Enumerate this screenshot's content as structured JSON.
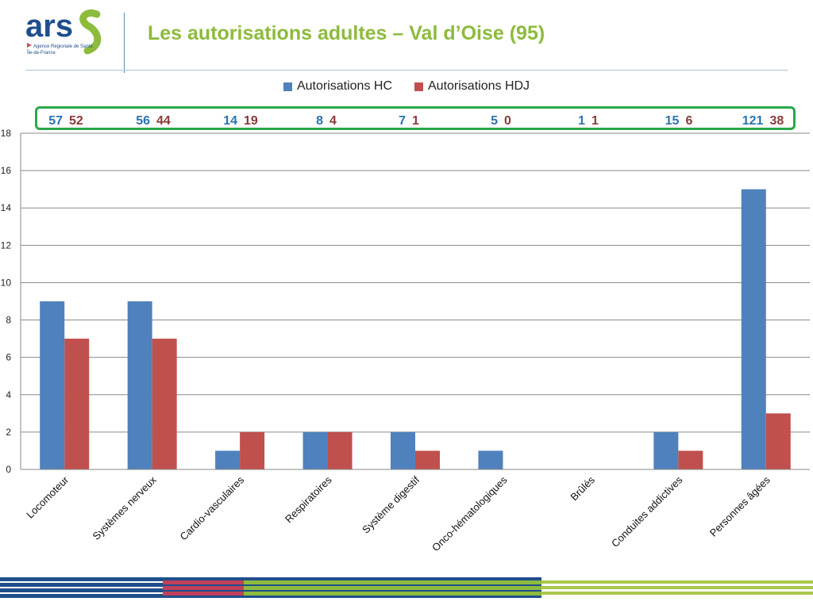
{
  "logo": {
    "text": "ars",
    "subtitle_line1": "Agence Régionale de Santé",
    "subtitle_line2": "Île-de-France"
  },
  "page": {
    "title": "Les autorisations adultes – Val d’Oise (95)"
  },
  "colors": {
    "hc": "#4f81bd",
    "hdj": "#c0504d",
    "title": "#8dbb3c",
    "box": "#2aa84a",
    "hc_text": "#2a72b0",
    "hdj_text": "#8a3a3a"
  },
  "legend": [
    {
      "label": "Autorisations HC",
      "color": "#4f81bd"
    },
    {
      "label": "Autorisations HDJ",
      "color": "#c0504d"
    }
  ],
  "counts": [
    {
      "hc": "57",
      "hdj": "52"
    },
    {
      "hc": "56",
      "hdj": "44"
    },
    {
      "hc": "14",
      "hdj": "19"
    },
    {
      "hc": "8",
      "hdj": "4"
    },
    {
      "hc": "7",
      "hdj": "1"
    },
    {
      "hc": "5",
      "hdj": "0"
    },
    {
      "hc": "1",
      "hdj": "1"
    },
    {
      "hc": "15",
      "hdj": "6"
    },
    {
      "hc": "121",
      "hdj": "38"
    }
  ],
  "chart_data": {
    "type": "bar",
    "categories": [
      "Locomoteur",
      "Systèmes nerveux",
      "Cardio-vasculaires",
      "Respiratoires",
      "Système digestif",
      "Onco-hématologiques",
      "Brûlés",
      "Conduites addictives",
      "Personnes âgées"
    ],
    "series": [
      {
        "name": "Autorisations HC",
        "values": [
          9,
          9,
          1,
          2,
          2,
          1,
          0,
          2,
          15
        ]
      },
      {
        "name": "Autorisations HDJ",
        "values": [
          7,
          7,
          2,
          2,
          1,
          0,
          0,
          1,
          3
        ]
      }
    ],
    "ylim": [
      0,
      18
    ],
    "yticks": [
      0,
      2,
      4,
      6,
      8,
      10,
      12,
      14,
      16,
      18
    ],
    "grid": true,
    "legend_position": "top"
  }
}
